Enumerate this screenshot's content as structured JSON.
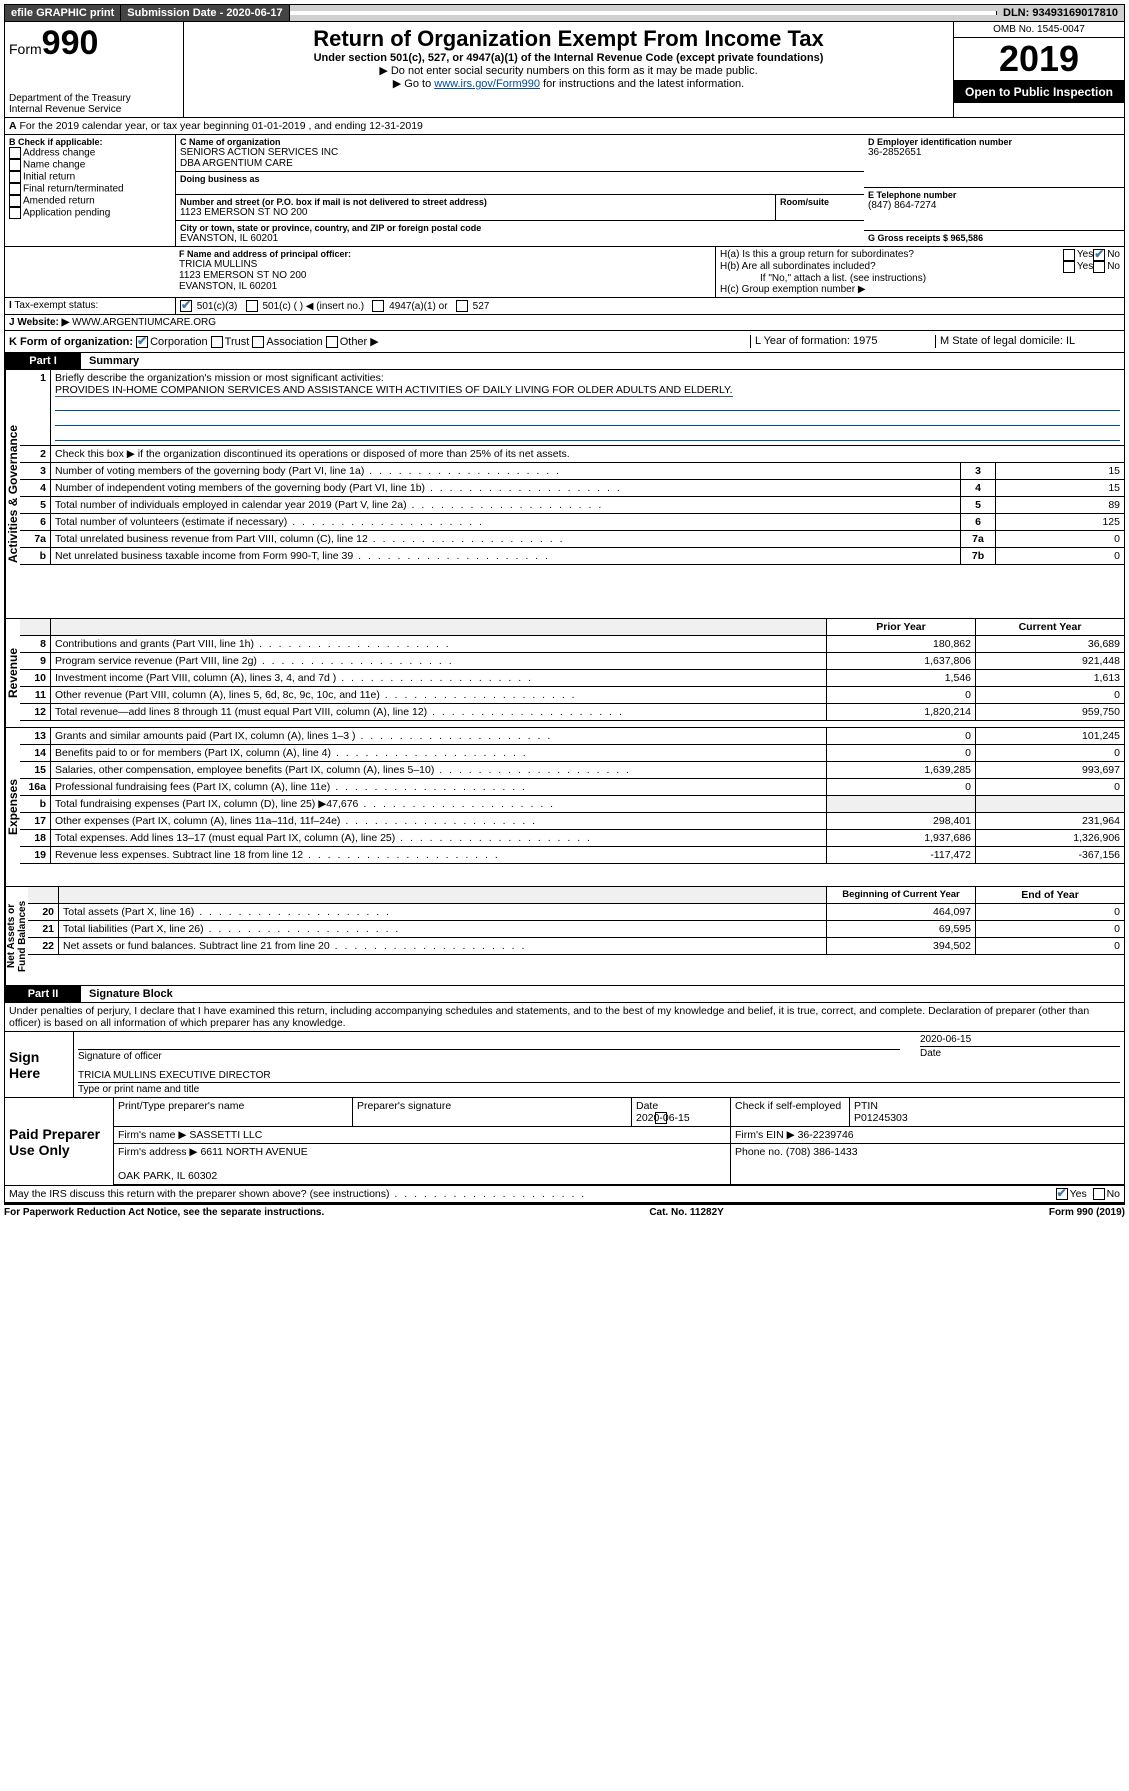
{
  "topbar": {
    "efile": "efile GRAPHIC print",
    "subdate_label": "Submission Date - 2020-06-17",
    "dln": "DLN: 93493169017810"
  },
  "header": {
    "form_prefix": "Form",
    "form_number": "990",
    "dept": "Department of the Treasury\nInternal Revenue Service",
    "title": "Return of Organization Exempt From Income Tax",
    "subtitle": "Under section 501(c), 527, or 4947(a)(1) of the Internal Revenue Code (except private foundations)",
    "note1": "Do not enter social security numbers on this form as it may be made public.",
    "note2_pre": "Go to ",
    "note2_link": "www.irs.gov/Form990",
    "note2_post": " for instructions and the latest information.",
    "omb": "OMB No. 1545-0047",
    "year": "2019",
    "open": "Open to Public Inspection"
  },
  "lineA": {
    "text": "For the 2019 calendar year, or tax year beginning 01-01-2019   , and ending 12-31-2019"
  },
  "boxB": {
    "label": "B Check if applicable:",
    "items": [
      "Address change",
      "Name change",
      "Initial return",
      "Final return/terminated",
      "Amended return",
      "Application pending"
    ]
  },
  "boxC": {
    "label_name": "C Name of organization",
    "name": "SENIORS ACTION SERVICES INC\nDBA ARGENTIUM CARE",
    "dba_label": "Doing business as",
    "addr_label": "Number and street (or P.O. box if mail is not delivered to street address)",
    "room_label": "Room/suite",
    "addr": "1123 EMERSON ST NO 200",
    "city_label": "City or town, state or province, country, and ZIP or foreign postal code",
    "city": "EVANSTON, IL  60201"
  },
  "boxD": {
    "label": "D Employer identification number",
    "value": "36-2852651"
  },
  "boxE": {
    "label": "E Telephone number",
    "value": "(847) 864-7274"
  },
  "boxG": {
    "label": "G Gross receipts $ 965,586"
  },
  "boxF": {
    "label": "F  Name and address of principal officer:",
    "value": "TRICIA MULLINS\n1123 EMERSON ST NO 200\nEVANSTON, IL  60201"
  },
  "boxH": {
    "a": "H(a)  Is this a group return for subordinates?",
    "b": "H(b)  Are all subordinates included?",
    "note": "If \"No,\" attach a list. (see instructions)",
    "c": "H(c)  Group exemption number ▶"
  },
  "taxexempt": {
    "label": "Tax-exempt status:",
    "opts": [
      "501(c)(3)",
      "501(c) (   ) ◀ (insert no.)",
      "4947(a)(1) or",
      "527"
    ]
  },
  "website": {
    "label": "J   Website: ▶",
    "value": "WWW.ARGENTIUMCARE.ORG"
  },
  "lineK": {
    "label": "K Form of organization:",
    "opts": [
      "Corporation",
      "Trust",
      "Association",
      "Other ▶"
    ],
    "L": "L Year of formation: 1975",
    "M": "M State of legal domicile: IL"
  },
  "part1": {
    "hdr": "Part I",
    "title": "Summary",
    "q1": "Briefly describe the organization's mission or most significant activities:",
    "mission": "PROVIDES IN-HOME COMPANION SERVICES AND ASSISTANCE WITH ACTIVITIES OF DAILY LIVING FOR OLDER ADULTS AND ELDERLY.",
    "q2": "Check this box ▶       if the organization discontinued its operations or disposed of more than 25% of its net assets.",
    "rows_gov": [
      {
        "n": "3",
        "t": "Number of voting members of the governing body (Part VI, line 1a)",
        "box": "3",
        "v": "15"
      },
      {
        "n": "4",
        "t": "Number of independent voting members of the governing body (Part VI, line 1b)",
        "box": "4",
        "v": "15"
      },
      {
        "n": "5",
        "t": "Total number of individuals employed in calendar year 2019 (Part V, line 2a)",
        "box": "5",
        "v": "89"
      },
      {
        "n": "6",
        "t": "Total number of volunteers (estimate if necessary)",
        "box": "6",
        "v": "125"
      },
      {
        "n": "7a",
        "t": "Total unrelated business revenue from Part VIII, column (C), line 12",
        "box": "7a",
        "v": "0"
      },
      {
        "n": "b",
        "t": "Net unrelated business taxable income from Form 990-T, line 39",
        "box": "7b",
        "v": "0"
      }
    ],
    "col_prior": "Prior Year",
    "col_current": "Current Year",
    "rows_rev": [
      {
        "n": "8",
        "t": "Contributions and grants (Part VIII, line 1h)",
        "p": "180,862",
        "c": "36,689"
      },
      {
        "n": "9",
        "t": "Program service revenue (Part VIII, line 2g)",
        "p": "1,637,806",
        "c": "921,448"
      },
      {
        "n": "10",
        "t": "Investment income (Part VIII, column (A), lines 3, 4, and 7d )",
        "p": "1,546",
        "c": "1,613"
      },
      {
        "n": "11",
        "t": "Other revenue (Part VIII, column (A), lines 5, 6d, 8c, 9c, 10c, and 11e)",
        "p": "0",
        "c": "0"
      },
      {
        "n": "12",
        "t": "Total revenue—add lines 8 through 11 (must equal Part VIII, column (A), line 12)",
        "p": "1,820,214",
        "c": "959,750"
      }
    ],
    "rows_exp": [
      {
        "n": "13",
        "t": "Grants and similar amounts paid (Part IX, column (A), lines 1–3 )",
        "p": "0",
        "c": "101,245"
      },
      {
        "n": "14",
        "t": "Benefits paid to or for members (Part IX, column (A), line 4)",
        "p": "0",
        "c": "0"
      },
      {
        "n": "15",
        "t": "Salaries, other compensation, employee benefits (Part IX, column (A), lines 5–10)",
        "p": "1,639,285",
        "c": "993,697"
      },
      {
        "n": "16a",
        "t": "Professional fundraising fees (Part IX, column (A), line 11e)",
        "p": "0",
        "c": "0"
      },
      {
        "n": "b",
        "t": "Total fundraising expenses (Part IX, column (D), line 25) ▶47,676",
        "p": "",
        "c": "",
        "shade": true
      },
      {
        "n": "17",
        "t": "Other expenses (Part IX, column (A), lines 11a–11d, 11f–24e)",
        "p": "298,401",
        "c": "231,964"
      },
      {
        "n": "18",
        "t": "Total expenses. Add lines 13–17 (must equal Part IX, column (A), line 25)",
        "p": "1,937,686",
        "c": "1,326,906"
      },
      {
        "n": "19",
        "t": "Revenue less expenses. Subtract line 18 from line 12",
        "p": "-117,472",
        "c": "-367,156"
      }
    ],
    "col_begin": "Beginning of Current Year",
    "col_end": "End of Year",
    "rows_net": [
      {
        "n": "20",
        "t": "Total assets (Part X, line 16)",
        "p": "464,097",
        "c": "0"
      },
      {
        "n": "21",
        "t": "Total liabilities (Part X, line 26)",
        "p": "69,595",
        "c": "0"
      },
      {
        "n": "22",
        "t": "Net assets or fund balances. Subtract line 21 from line 20",
        "p": "394,502",
        "c": "0"
      }
    ],
    "vlabels": [
      "Activities & Governance",
      "Revenue",
      "Expenses",
      "Net Assets or\nFund Balances"
    ]
  },
  "part2": {
    "hdr": "Part II",
    "title": "Signature Block",
    "perjury": "Under penalties of perjury, I declare that I have examined this return, including accompanying schedules and statements, and to the best of my knowledge and belief, it is true, correct, and complete. Declaration of preparer (other than officer) is based on all information of which preparer has any knowledge.",
    "sign_here": "Sign Here",
    "sig_officer": "Signature of officer",
    "sig_date": "2020-06-15",
    "date_lbl": "Date",
    "officer_name": "TRICIA MULLINS  EXECUTIVE DIRECTOR",
    "type_name": "Type or print name and title",
    "paid": "Paid Preparer Use Only",
    "prep_name_lbl": "Print/Type preparer's name",
    "prep_sig_lbl": "Preparer's signature",
    "prep_date": "2020-06-15",
    "self_emp": "Check       if self-employed",
    "ptin_lbl": "PTIN",
    "ptin": "P01245303",
    "firm_name_lbl": "Firm's name   ▶",
    "firm_name": "SASSETTI LLC",
    "firm_ein_lbl": "Firm's EIN ▶",
    "firm_ein": "36-2239746",
    "firm_addr_lbl": "Firm's address ▶",
    "firm_addr": "6611 NORTH AVENUE\n\nOAK PARK, IL  60302",
    "firm_phone_lbl": "Phone no.",
    "firm_phone": "(708) 386-1433",
    "discuss": "May the IRS discuss this return with the preparer shown above? (see instructions)"
  },
  "footer": {
    "left": "For Paperwork Reduction Act Notice, see the separate instructions.",
    "mid": "Cat. No. 11282Y",
    "right": "Form 990 (2019)"
  }
}
